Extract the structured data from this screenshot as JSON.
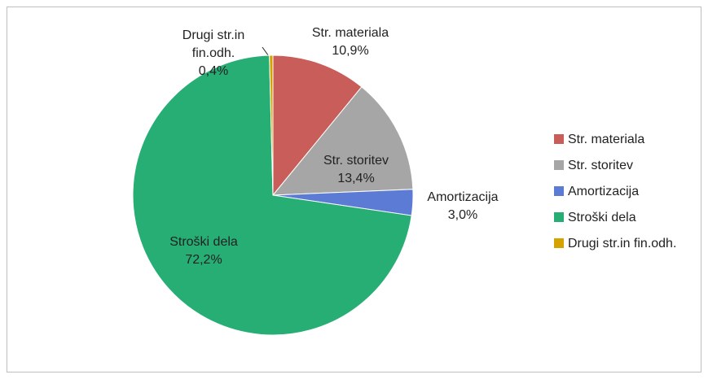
{
  "chart_data": {
    "type": "pie",
    "categories": [
      "Str. materiala",
      "Str. storitev",
      "Amortizacija",
      "Stroški dela",
      "Drugi str.in fin.odh."
    ],
    "values": [
      10.9,
      13.4,
      3.0,
      72.2,
      0.4
    ],
    "value_labels": [
      "10,9%",
      "13,4%",
      "3,0%",
      "72,2%",
      "0,4%"
    ],
    "colors": [
      "#c95d5a",
      "#a6a6a6",
      "#5b7bd5",
      "#27ae74",
      "#d4a300"
    ],
    "legend": "right"
  }
}
